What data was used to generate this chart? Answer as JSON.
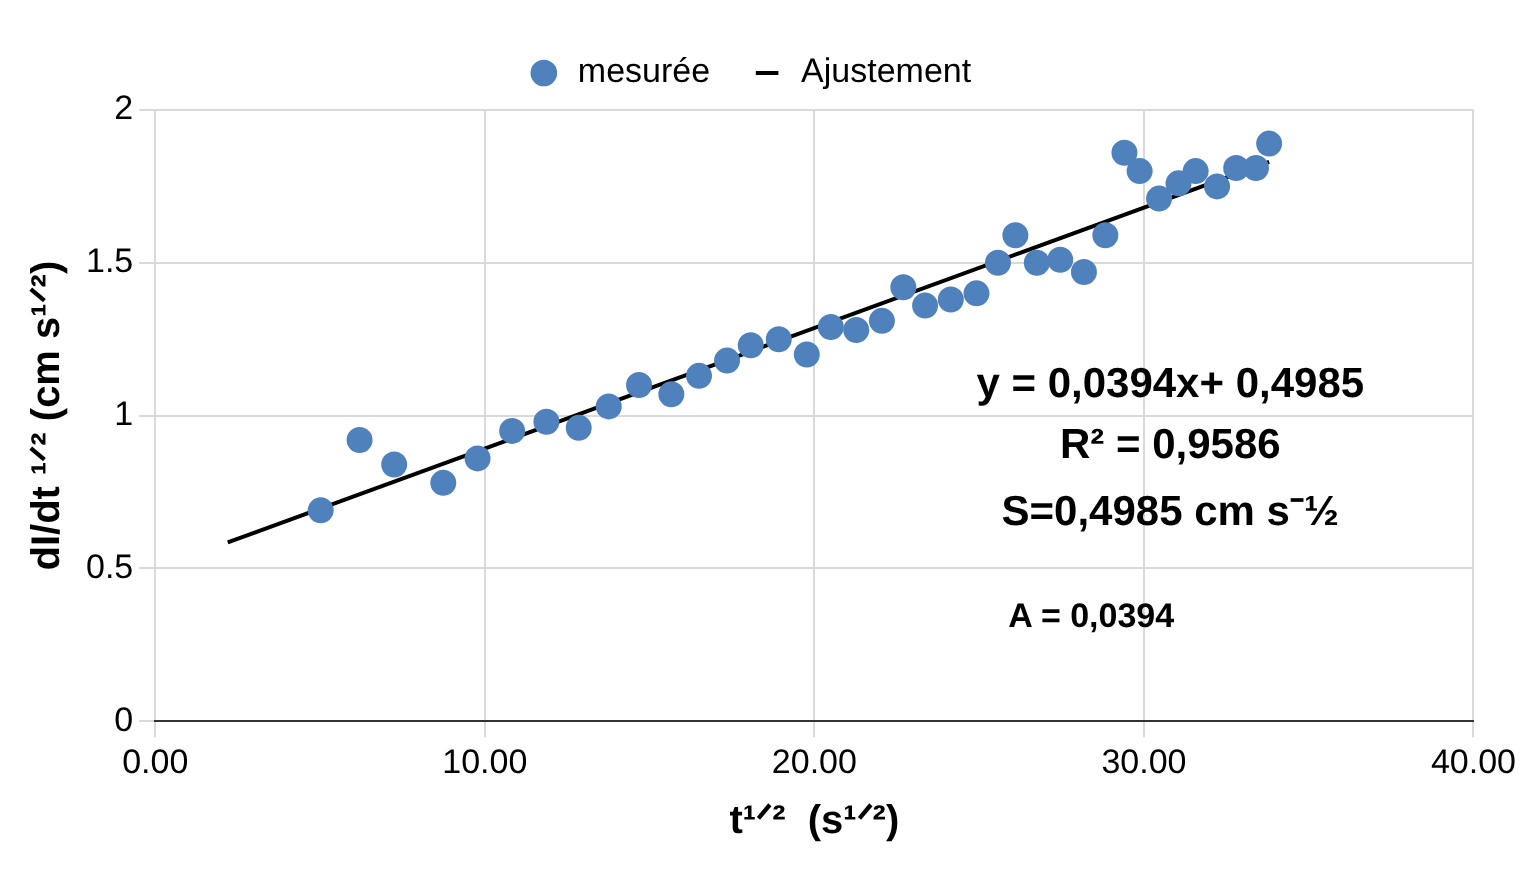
{
  "chart_data": {
    "type": "scatter",
    "xlabel": "t¹ᐟ²  (s¹ᐟ²)",
    "ylabel": "dI/dt ¹ᐟ² (cm s¹ᐟ²)",
    "x": [
      5.02,
      6.2,
      7.25,
      8.74,
      9.78,
      10.83,
      11.87,
      12.85,
      13.76,
      14.68,
      15.66,
      16.5,
      17.35,
      18.07,
      18.92,
      19.77,
      20.5,
      21.27,
      22.05,
      22.7,
      23.36,
      24.14,
      24.92,
      25.57,
      26.1,
      26.75,
      27.46,
      28.18,
      28.83,
      29.41,
      29.87,
      30.46,
      31.05,
      31.57,
      32.22,
      32.8,
      33.4,
      33.8
    ],
    "series": [
      {
        "name": "mesurée",
        "marker": "circle",
        "color": "#4f81bd",
        "values": [
          0.69,
          0.92,
          0.84,
          0.78,
          0.86,
          0.95,
          0.98,
          0.96,
          1.03,
          1.1,
          1.07,
          1.13,
          1.18,
          1.23,
          1.25,
          1.2,
          1.29,
          1.28,
          1.31,
          1.42,
          1.36,
          1.38,
          1.4,
          1.5,
          1.59,
          1.5,
          1.51,
          1.47,
          1.59,
          1.86,
          1.8,
          1.71,
          1.76,
          1.8,
          1.75,
          1.81,
          1.81,
          1.89
        ]
      },
      {
        "name": "Ajustement",
        "type": "line",
        "marker": "none",
        "color": "#000000",
        "x": [
          2.2,
          33.8
        ],
        "values": [
          0.585,
          1.83
        ]
      }
    ],
    "xlim": [
      0,
      40
    ],
    "xticks": [
      {
        "value": 0,
        "label": "0.00"
      },
      {
        "value": 10,
        "label": "10.00"
      },
      {
        "value": 20,
        "label": "20.00"
      },
      {
        "value": 30,
        "label": "30.00"
      },
      {
        "value": 40,
        "label": "40.00"
      }
    ],
    "ylim": [
      0,
      2
    ],
    "yticks": [
      0,
      0.5,
      1,
      1.5,
      2
    ],
    "annotations": [
      "y = 0,0394x+ 0,4985",
      "R² = 0,9586",
      "S=0,4985 cm s⁻½",
      "A = 0,0394"
    ],
    "grid": true,
    "legend": "top",
    "line_style": "solid"
  }
}
